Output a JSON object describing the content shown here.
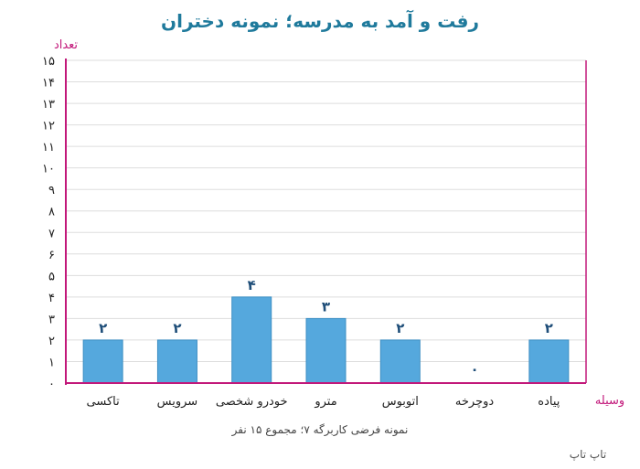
{
  "chart_data": {
    "type": "bar",
    "title": "رفت و آمد به مدرسه؛ نمونه دختران",
    "xlabel": "وسیله",
    "ylabel": "تعداد",
    "categories": [
      "تاکسی",
      "سرویس",
      "خودرو شخصی",
      "مترو",
      "اتوبوس",
      "دوچرخه",
      "پیاده"
    ],
    "values": [
      2,
      2,
      4,
      3,
      2,
      0,
      2
    ],
    "value_labels": [
      "۲",
      "۲",
      "۴",
      "۳",
      "۲",
      "۰",
      "۲"
    ],
    "ylim": [
      0,
      15
    ],
    "yticks": [
      0,
      1,
      2,
      3,
      4,
      5,
      6,
      7,
      8,
      9,
      10,
      11,
      12,
      13,
      14,
      15
    ],
    "ytick_labels": [
      "۰",
      "۱",
      "۲",
      "۳",
      "۴",
      "۵",
      "۶",
      "۷",
      "۸",
      "۹",
      "۱۰",
      "۱۱",
      "۱۲",
      "۱۳",
      "۱۴",
      "۱۵"
    ],
    "grid": true,
    "note": "نمونه فرضی کاربرگه ۷؛ مجموع ۱۵ نفر",
    "credit": "تاپ تاپ",
    "colors": {
      "bar": "#55a8dd",
      "bar_edge": "#3d8fc4",
      "axis": "#c2187a",
      "title": "#1f7a9c",
      "data_label": "#1f4e79",
      "grid": "#dddddd"
    }
  }
}
